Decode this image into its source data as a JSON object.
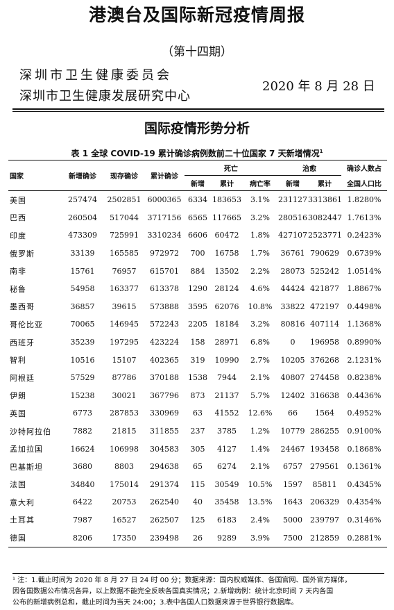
{
  "report": {
    "title": "港澳台及国际新冠疫情周报",
    "issue": "（第十四期）",
    "org_line1": "深圳市卫生健康委员会",
    "org_line2": "深圳市卫生健康发展研究中心",
    "date": "2020 年 8 月 28 日",
    "section_title": "国际疫情形势分析"
  },
  "table": {
    "caption": "表 1  全球 COVID-19 累计确诊病例数前二十位国家 7 天新增情况",
    "caption_sup": "1",
    "headers": {
      "country": "国家",
      "new_confirmed": "新增确诊",
      "current_confirmed": "现存确诊",
      "total_confirmed": "累计确诊",
      "deaths_group": "死亡",
      "recovered_group": "治愈",
      "ratio_line1": "确诊人数占",
      "ratio_line2": "全国人口比",
      "sub_new": "新增",
      "sub_total": "累计",
      "sub_rate": "病亡率",
      "sub_rec_new": "新增",
      "sub_rec_total": "累计"
    },
    "rows": [
      [
        "美国",
        "257474",
        "2502851",
        "6000365",
        "6334",
        "183653",
        "3.1%",
        "231127",
        "3313861",
        "1.8280%"
      ],
      [
        "巴西",
        "260504",
        "517044",
        "3717156",
        "6565",
        "117665",
        "3.2%",
        "280516",
        "3082447",
        "1.7613%"
      ],
      [
        "印度",
        "473309",
        "725991",
        "3310234",
        "6606",
        "60472",
        "1.8%",
        "427107",
        "2523771",
        "0.2423%"
      ],
      [
        "俄罗斯",
        "33139",
        "165585",
        "972972",
        "700",
        "16758",
        "1.7%",
        "36761",
        "790629",
        "0.6739%"
      ],
      [
        "南非",
        "15761",
        "76957",
        "615701",
        "884",
        "13502",
        "2.2%",
        "28073",
        "525242",
        "1.0514%"
      ],
      [
        "秘鲁",
        "54958",
        "163377",
        "613378",
        "1290",
        "28124",
        "4.6%",
        "44424",
        "421877",
        "1.8867%"
      ],
      [
        "墨西哥",
        "36857",
        "39615",
        "573888",
        "3595",
        "62076",
        "10.8%",
        "33822",
        "472197",
        "0.4498%"
      ],
      [
        "哥伦比亚",
        "70065",
        "146945",
        "572243",
        "2205",
        "18184",
        "3.2%",
        "80816",
        "407114",
        "1.1368%"
      ],
      [
        "西班牙",
        "35239",
        "197295",
        "423224",
        "158",
        "28971",
        "6.8%",
        "0",
        "196958",
        "0.8990%"
      ],
      [
        "智利",
        "10516",
        "15107",
        "402365",
        "319",
        "10990",
        "2.7%",
        "10205",
        "376268",
        "2.1231%"
      ],
      [
        "阿根廷",
        "57529",
        "87786",
        "370188",
        "1538",
        "7944",
        "2.1%",
        "40807",
        "274458",
        "0.8238%"
      ],
      [
        "伊朗",
        "15238",
        "30021",
        "367796",
        "873",
        "21137",
        "5.7%",
        "12402",
        "316638",
        "0.4436%"
      ],
      [
        "英国",
        "6773",
        "287853",
        "330969",
        "63",
        "41552",
        "12.6%",
        "66",
        "1564",
        "0.4952%"
      ],
      [
        "沙特阿拉伯",
        "7882",
        "21815",
        "311855",
        "237",
        "3785",
        "1.2%",
        "10779",
        "286255",
        "0.9100%"
      ],
      [
        "孟加拉国",
        "16624",
        "106998",
        "304583",
        "305",
        "4127",
        "1.4%",
        "24467",
        "193458",
        "0.1868%"
      ],
      [
        "巴基斯坦",
        "3680",
        "8803",
        "294638",
        "65",
        "6274",
        "2.1%",
        "6757",
        "279561",
        "0.1361%"
      ],
      [
        "法国",
        "34840",
        "175014",
        "291374",
        "115",
        "30549",
        "10.5%",
        "1597",
        "85811",
        "0.4345%"
      ],
      [
        "意大利",
        "6422",
        "20753",
        "262540",
        "40",
        "35458",
        "13.5%",
        "1643",
        "206329",
        "0.4354%"
      ],
      [
        "土耳其",
        "7987",
        "16527",
        "262507",
        "125",
        "6183",
        "2.4%",
        "5000",
        "239797",
        "0.3146%"
      ],
      [
        "德国",
        "8206",
        "17350",
        "239498",
        "26",
        "9289",
        "3.9%",
        "7500",
        "212859",
        "0.2881%"
      ]
    ]
  },
  "footnote": {
    "line1": "¹ 注：1.截止时间为 2020 年 8 月 27 日 24 时 00 分；数据来源：国内权威媒体、各国官网、国外官方媒体，",
    "line2": "因各国数据公布情况各异，以上数据不能完全反映各国真实情况；2.新增病例：统计北京时间 7 天内各国",
    "line3": "公布的新增病例总和，截止时间为当天 24:00；3.表中各国人口数据来源于世界银行数据库。"
  }
}
